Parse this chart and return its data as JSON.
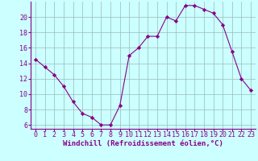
{
  "x": [
    0,
    1,
    2,
    3,
    4,
    5,
    6,
    7,
    8,
    9,
    10,
    11,
    12,
    13,
    14,
    15,
    16,
    17,
    18,
    19,
    20,
    21,
    22,
    23
  ],
  "y": [
    14.5,
    13.5,
    12.5,
    11.0,
    9.0,
    7.5,
    7.0,
    6.0,
    6.0,
    8.5,
    15.0,
    16.0,
    17.5,
    17.5,
    20.0,
    19.5,
    21.5,
    21.5,
    21.0,
    20.5,
    19.0,
    15.5,
    12.0,
    10.5
  ],
  "line_color": "#880088",
  "marker": "D",
  "marker_size": 2.2,
  "bg_color": "#ccffff",
  "grid_color": "#99bbbb",
  "xlabel": "Windchill (Refroidissement éolien,°C)",
  "xlabel_color": "#880088",
  "xlabel_fontsize": 6.5,
  "tick_fontsize": 6.0,
  "tick_color": "#880088",
  "ylim": [
    5.5,
    22.0
  ],
  "yticks": [
    6,
    8,
    10,
    12,
    14,
    16,
    18,
    20
  ],
  "xticks": [
    0,
    1,
    2,
    3,
    4,
    5,
    6,
    7,
    8,
    9,
    10,
    11,
    12,
    13,
    14,
    15,
    16,
    17,
    18,
    19,
    20,
    21,
    22,
    23
  ],
  "spine_color": "#880088"
}
